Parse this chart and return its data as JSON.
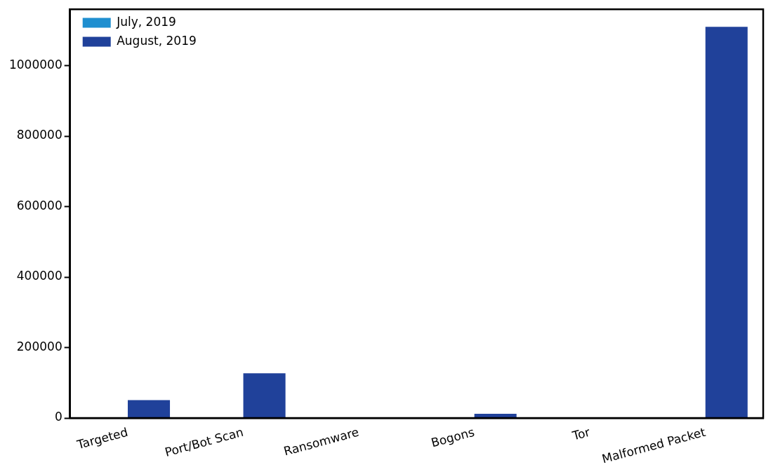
{
  "chart_data": {
    "type": "bar",
    "categories": [
      "Targeted",
      "Port/Bot Scan",
      "Ransomware",
      "Bogons",
      "Tor",
      "Malformed Packet"
    ],
    "series": [
      {
        "name": "July, 2019",
        "color": "#1f8fd0",
        "values": [
          0,
          0,
          0,
          0,
          0,
          0
        ]
      },
      {
        "name": "August, 2019",
        "color": "#20419a",
        "values": [
          51000,
          127000,
          0,
          12000,
          0,
          1110000
        ]
      }
    ],
    "ylim": [
      0,
      1160000
    ],
    "yticks": [
      0,
      200000,
      400000,
      600000,
      800000,
      1000000
    ],
    "grid": false,
    "legend": "top left"
  }
}
